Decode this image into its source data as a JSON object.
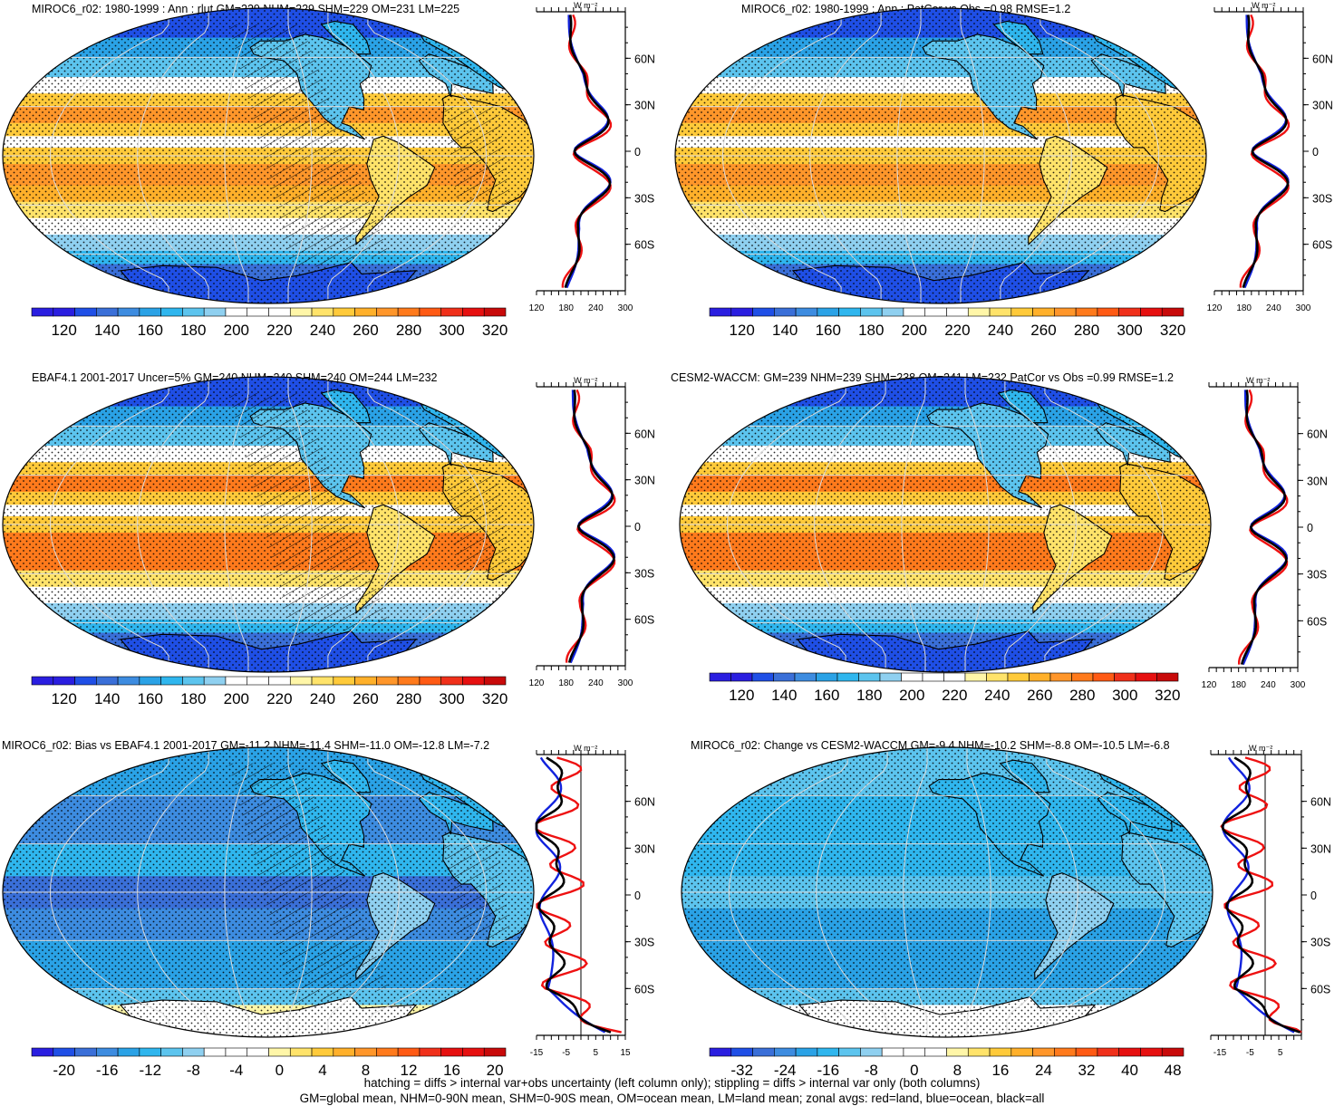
{
  "panels": [
    {
      "id": "p1",
      "title": "MIROC6_r02: 1980-1999 : Ann : rlut GM=229 NHM=229 SHM=229 OM=231 LM=225",
      "field": "abs",
      "model": "a",
      "hatch": true,
      "colorbar": {
        "labels": [
          "120",
          "140",
          "160",
          "180",
          "200",
          "220",
          "240",
          "260",
          "280",
          "300",
          "320"
        ]
      },
      "zonal": {
        "units": "W m⁻²",
        "xticks": [
          "120",
          "180",
          "240",
          "300"
        ],
        "xlim": [
          120,
          300
        ],
        "xticks_values": [
          120,
          180,
          240,
          300
        ],
        "ref": null,
        "yticks": [
          "60N",
          "30N",
          "0",
          "30S",
          "60S"
        ]
      }
    },
    {
      "id": "p2",
      "title": "MIROC6_r02: 1980-1999 : Ann : PatCor vs Obs =0.98 RMSE=1.2",
      "field": "abs",
      "model": "a",
      "hatch": false,
      "colorbar": {
        "labels": [
          "120",
          "140",
          "160",
          "180",
          "200",
          "220",
          "240",
          "260",
          "280",
          "300",
          "320"
        ]
      },
      "zonal": {
        "units": "W m⁻²",
        "xticks": [
          "120",
          "180",
          "240",
          "300"
        ],
        "xlim": [
          120,
          300
        ],
        "xticks_values": [
          120,
          180,
          240,
          300
        ],
        "ref": null,
        "yticks": [
          "60N",
          "30N",
          "0",
          "30S",
          "60S"
        ]
      }
    },
    {
      "id": "p3",
      "title": "EBAF4.1 2001-2017 Uncer=5% GM=240 NHM=240 SHM=240 OM=244 LM=232",
      "field": "abs",
      "model": "b",
      "hatch": true,
      "colorbar": {
        "labels": [
          "120",
          "140",
          "160",
          "180",
          "200",
          "220",
          "240",
          "260",
          "280",
          "300",
          "320"
        ]
      },
      "zonal": {
        "units": "W m⁻²",
        "xticks": [
          "120",
          "180",
          "240",
          "300"
        ],
        "xlim": [
          120,
          300
        ],
        "xticks_values": [
          120,
          180,
          240,
          300
        ],
        "ref": null,
        "yticks": [
          "60N",
          "30N",
          "0",
          "30S",
          "60S"
        ]
      }
    },
    {
      "id": "p4",
      "title": "CESM2-WACCM: GM=239 NHM=239 SHM=238 OM=241 LM=232 PatCor vs Obs =0.99 RMSE=1.2",
      "field": "abs",
      "model": "b",
      "hatch": false,
      "colorbar": {
        "labels": [
          "120",
          "140",
          "160",
          "180",
          "200",
          "220",
          "240",
          "260",
          "280",
          "300",
          "320"
        ]
      },
      "zonal": {
        "units": "W m⁻²",
        "xticks": [
          "120",
          "180",
          "240",
          "300"
        ],
        "xlim": [
          120,
          300
        ],
        "xticks_values": [
          120,
          180,
          240,
          300
        ],
        "ref": null,
        "yticks": [
          "60N",
          "30N",
          "0",
          "30S",
          "60S"
        ]
      }
    },
    {
      "id": "p5",
      "title": "MIROC6_r02: Bias vs EBAF4.1 2001-2017 GM=-11.2 NHM=-11.4 SHM=-11.0 OM=-12.8 LM=-7.2",
      "field": "diff",
      "model": "a",
      "hatch": true,
      "colorbar": {
        "labels": [
          "-20",
          "-16",
          "-12",
          "-8",
          "-4",
          "0",
          "4",
          "8",
          "12",
          "16",
          "20"
        ]
      },
      "zonal": {
        "units": "W m⁻²",
        "xticks": [
          "-15",
          "-5",
          "5",
          "15"
        ],
        "xlim": [
          -15,
          15
        ],
        "xticks_values": [
          -15,
          -5,
          5,
          15
        ],
        "ref": 0,
        "yticks": [
          "60N",
          "30N",
          "0",
          "30S",
          "60S"
        ]
      }
    },
    {
      "id": "p6",
      "title": "MIROC6_r02: Change vs CESM2-WACCM GM=-9.4 NHM=-10.2 SHM=-8.8 OM=-10.5 LM=-6.8",
      "field": "diff",
      "model": "b",
      "hatch": false,
      "colorbar": {
        "labels": [
          "-32",
          "-24",
          "-16",
          "-8",
          "0",
          "8",
          "16",
          "24",
          "32",
          "40",
          "48"
        ]
      },
      "zonal": {
        "units": "W m⁻²",
        "xticks": [
          "-15",
          "-5",
          "5"
        ],
        "xlim": [
          -18,
          12
        ],
        "xticks_values": [
          -15,
          -5,
          5
        ],
        "ref": 0,
        "yticks": [
          "60N",
          "30N",
          "0",
          "30S",
          "60S"
        ]
      }
    }
  ],
  "colors": {
    "scale": [
      "#2a1ee0",
      "#1f4fe6",
      "#3a6fd8",
      "#3d8ce0",
      "#2aa2e6",
      "#2fb6ee",
      "#5cc4ee",
      "#8fd0f0",
      "#ffffff",
      "#ffffff",
      "#fff6a8",
      "#ffe36a",
      "#ffca3a",
      "#ffb02a",
      "#ff962a",
      "#ff7a1c",
      "#ff5a14",
      "#f0301a",
      "#e61010",
      "#c80a0a"
    ],
    "zonal_land": "#ee1111",
    "zonal_ocean": "#1122dd",
    "zonal_all": "#000000"
  },
  "footer": [
    "hatching = diffs > internal var+obs uncertainty (left column only); stippling = diffs > internal var only (both columns)",
    "GM=global mean, NHM=0-90N mean, SHM=0-90S mean, OM=ocean mean, LM=land mean; zonal avgs: red=land, blue=ocean, black=all"
  ]
}
